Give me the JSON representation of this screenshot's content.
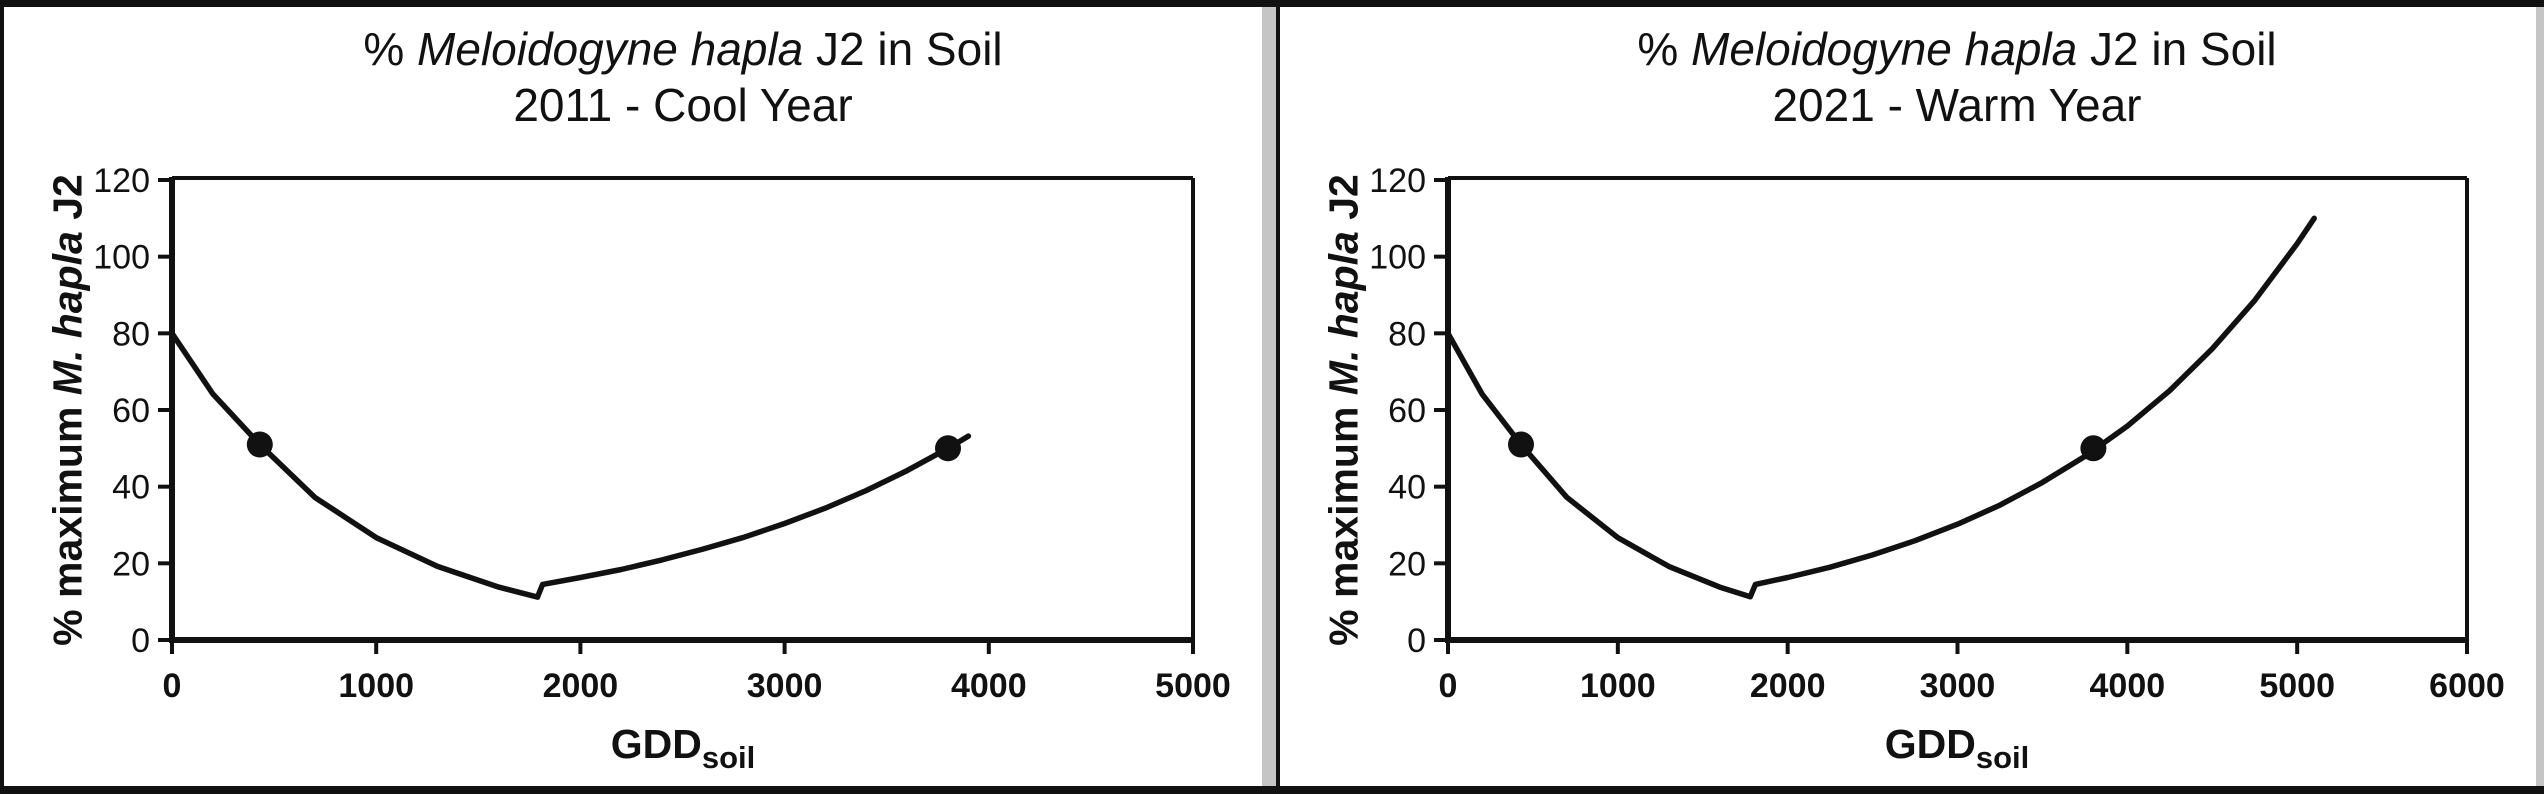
{
  "figure": {
    "border_color": "#111111",
    "divider_color": "#c5c5c5",
    "background": "#ffffff",
    "line_color": "#111111"
  },
  "chart_data": [
    {
      "type": "line",
      "title_prefix": "% ",
      "title_species": "Meloidogyne hapla",
      "title_suffix": " J2 in Soil",
      "subtitle": "2011 - Cool Year",
      "ylabel_prefix": "% maximum ",
      "ylabel_species": "M. hapla",
      "ylabel_suffix": " J2",
      "xlabel_main": "GDD",
      "xlabel_sub": "soil",
      "xlim": [
        0,
        5000
      ],
      "ylim": [
        0,
        120
      ],
      "xticks": [
        0,
        1000,
        2000,
        3000,
        4000,
        5000
      ],
      "yticks": [
        0,
        20,
        40,
        60,
        80,
        100,
        120
      ],
      "grid": false,
      "legend": false,
      "series": [
        {
          "name": "% maximum M. hapla J2 - 2011",
          "points": [
            [
              0,
              80
            ],
            [
              200,
              64.2
            ],
            [
              430,
              51
            ],
            [
              700,
              37.2
            ],
            [
              1000,
              26.7
            ],
            [
              1300,
              19.2
            ],
            [
              1600,
              13.8
            ],
            [
              1790,
              11.2
            ],
            [
              1815,
              14.5
            ],
            [
              2000,
              16.3
            ],
            [
              2200,
              18.4
            ],
            [
              2400,
              20.9
            ],
            [
              2600,
              23.7
            ],
            [
              2800,
              26.8
            ],
            [
              3000,
              30.4
            ],
            [
              3200,
              34.4
            ],
            [
              3400,
              39.0
            ],
            [
              3600,
              44.2
            ],
            [
              3800,
              50.0
            ],
            [
              3900,
              53.2
            ]
          ]
        }
      ],
      "markers": [
        [
          430,
          51
        ],
        [
          3800,
          50
        ]
      ]
    },
    {
      "type": "line",
      "title_prefix": "% ",
      "title_species": "Meloidogyne hapla",
      "title_suffix": " J2 in Soil",
      "subtitle": "2021 - Warm Year",
      "ylabel_prefix": "% maximum ",
      "ylabel_species": "M. hapla",
      "ylabel_suffix": " J2",
      "xlabel_main": "GDD",
      "xlabel_sub": "soil",
      "xlim": [
        0,
        6000
      ],
      "ylim": [
        0,
        120
      ],
      "xticks": [
        0,
        1000,
        2000,
        3000,
        4000,
        5000,
        6000
      ],
      "yticks": [
        0,
        20,
        40,
        60,
        80,
        100,
        120
      ],
      "grid": false,
      "legend": false,
      "series": [
        {
          "name": "% maximum M. hapla J2 - 2021",
          "points": [
            [
              0,
              80
            ],
            [
              200,
              64.2
            ],
            [
              430,
              51
            ],
            [
              700,
              37.2
            ],
            [
              1000,
              26.7
            ],
            [
              1300,
              19.2
            ],
            [
              1600,
              13.8
            ],
            [
              1780,
              11.3
            ],
            [
              1810,
              14.5
            ],
            [
              2000,
              16.3
            ],
            [
              2250,
              19.0
            ],
            [
              2500,
              22.2
            ],
            [
              2750,
              25.9
            ],
            [
              3000,
              30.2
            ],
            [
              3250,
              35.2
            ],
            [
              3500,
              41.1
            ],
            [
              3750,
              47.9
            ],
            [
              4000,
              55.8
            ],
            [
              4250,
              65.1
            ],
            [
              4500,
              76.0
            ],
            [
              4750,
              88.6
            ],
            [
              5000,
              103.4
            ],
            [
              5100,
              110.0
            ]
          ]
        }
      ],
      "markers": [
        [
          430,
          51
        ],
        [
          3800,
          50
        ]
      ]
    }
  ]
}
